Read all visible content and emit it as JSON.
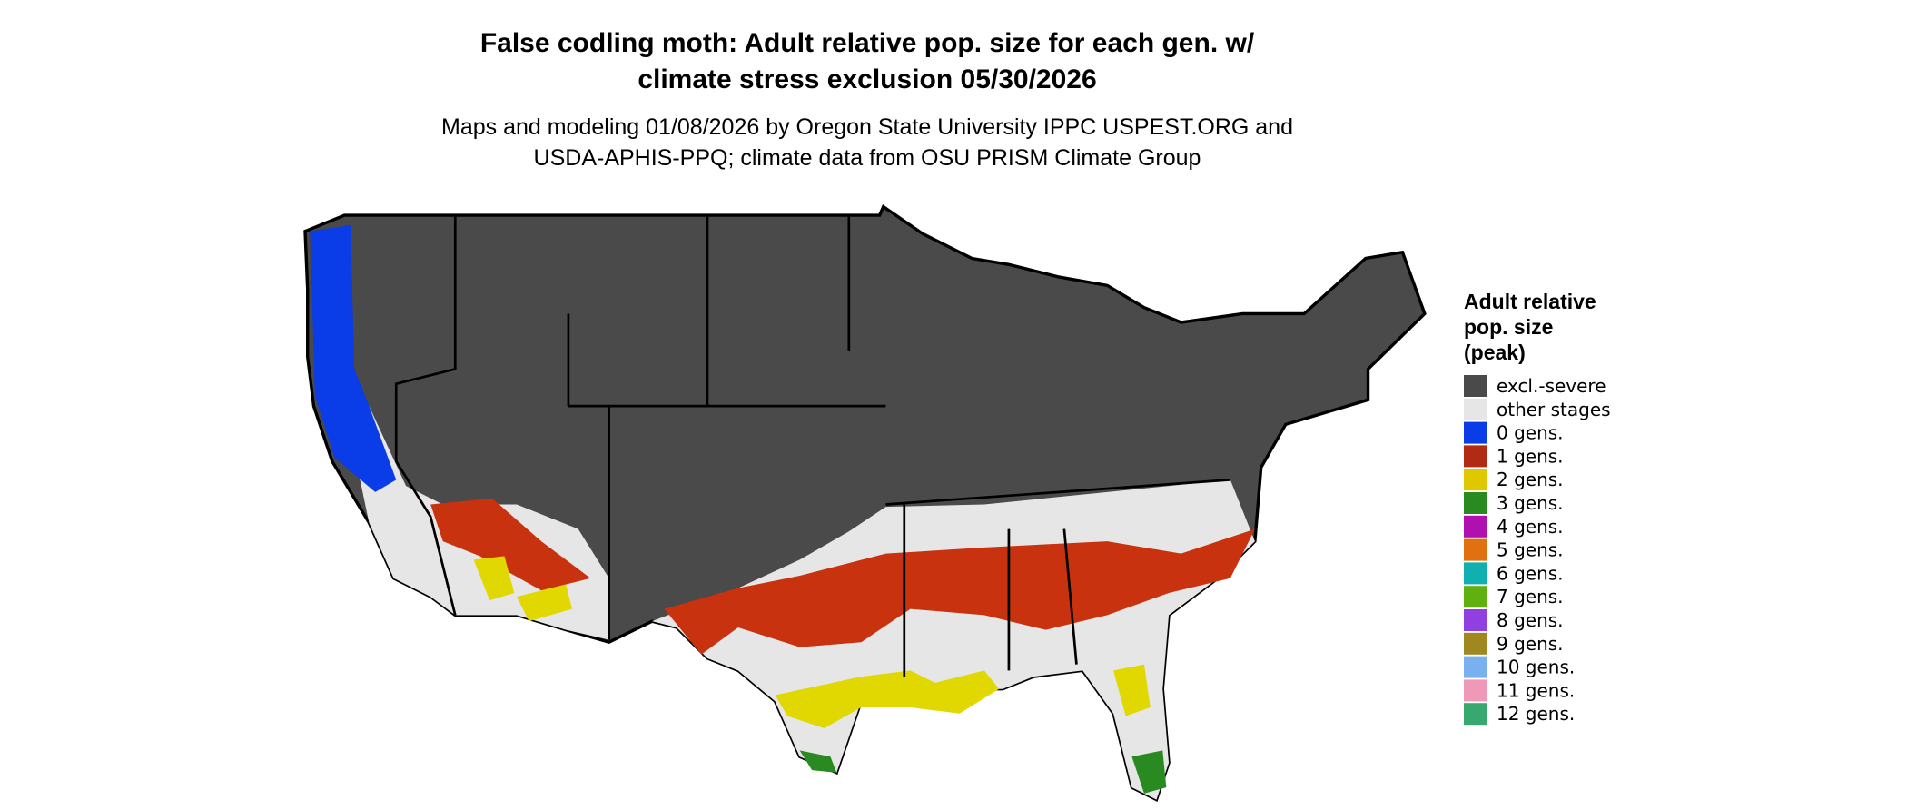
{
  "title_lines": [
    "False codling moth: Adult relative pop. size for each gen. w/",
    "climate stress exclusion 05/30/2026"
  ],
  "subtitle_lines": [
    "Maps and modeling 01/08/2026 by Oregon State University IPPC USPEST.ORG and",
    "USDA-APHIS-PPQ; climate data from OSU PRISM Climate Group"
  ],
  "legend": {
    "title_lines": [
      "Adult relative",
      "pop. size",
      "(peak)"
    ],
    "items": [
      {
        "label": "excl.-severe",
        "color": "#4a4a4a"
      },
      {
        "label": "other stages",
        "color": "#e6e6e6"
      },
      {
        "label": "0 gens.",
        "color": "#0a3ce8"
      },
      {
        "label": "1 gens.",
        "color": "#b02a14"
      },
      {
        "label": "2 gens.",
        "color": "#e0c800"
      },
      {
        "label": "3 gens.",
        "color": "#2a8a22"
      },
      {
        "label": "4 gens.",
        "color": "#b010b0"
      },
      {
        "label": "5 gens.",
        "color": "#e07010"
      },
      {
        "label": "6 gens.",
        "color": "#10b0b0"
      },
      {
        "label": "7 gens.",
        "color": "#60b010"
      },
      {
        "label": "8 gens.",
        "color": "#9040e0"
      },
      {
        "label": "9 gens.",
        "color": "#a08820"
      },
      {
        "label": "10 gens.",
        "color": "#78b0f0"
      },
      {
        "label": "11 gens.",
        "color": "#f098b8"
      },
      {
        "label": "12 gens.",
        "color": "#38a870"
      }
    ]
  }
}
